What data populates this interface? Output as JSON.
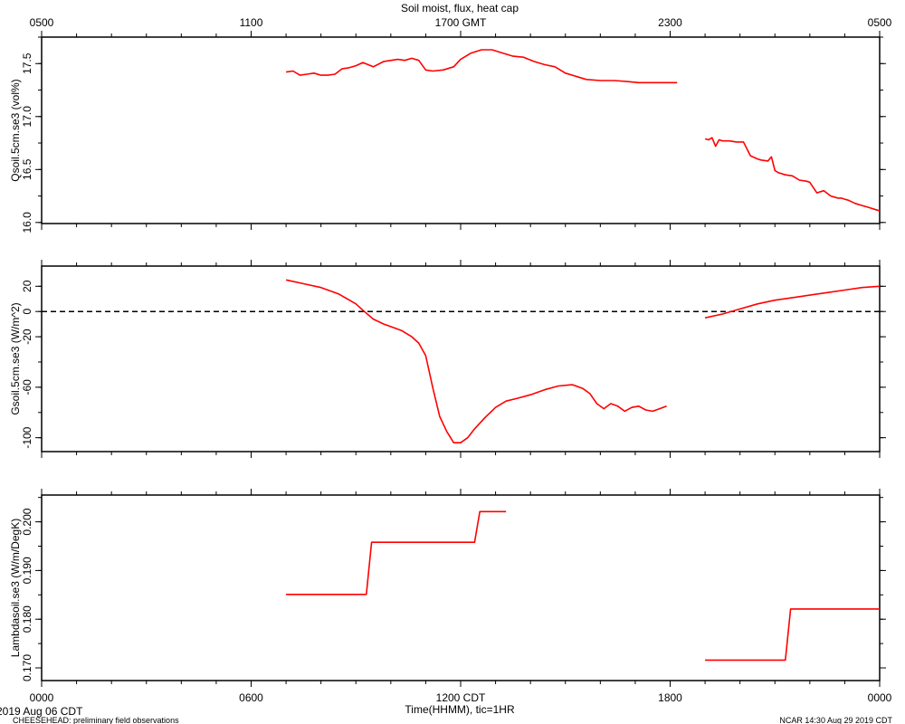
{
  "title": "Soil moist, flux, heat cap",
  "top_axis_ticks": [
    "0500",
    "1100",
    "1700 GMT",
    "2300",
    "0500"
  ],
  "bottom_axis_ticks": [
    "0000",
    "0600",
    "1200 CDT",
    "1800",
    "0000"
  ],
  "date_label": "2019 Aug 06 CDT",
  "xlabel": "Time(HHMM), tic=1HR",
  "footer_left": "CHEESEHEAD: preliminary field observations",
  "footer_right": "NCAR 14:30 Aug 29 2019 CDT",
  "colors": {
    "series": "#ff0000",
    "axes": "#000000",
    "zero_line": "#000000"
  },
  "chart_data": [
    {
      "type": "line",
      "ylabel": "Qsoil.5cm.se3 (vol%)",
      "ylim": [
        15.99,
        17.75
      ],
      "yticks": [
        16.0,
        16.5,
        17.0,
        17.5
      ],
      "yticklabels": [
        "16.0",
        "16.5",
        "17.0",
        "17.5"
      ],
      "xlim": [
        0,
        24
      ],
      "segments": [
        {
          "x": [
            7.0,
            7.2,
            7.4,
            7.6,
            7.8,
            8.0,
            8.2,
            8.4,
            8.6,
            8.8,
            9.0,
            9.2,
            9.5,
            9.8,
            10.2,
            10.4,
            10.6,
            10.8,
            11.0,
            11.2,
            11.5,
            11.8,
            12.0,
            12.3,
            12.6,
            12.9,
            13.2,
            13.5,
            13.8,
            14.1,
            14.4,
            14.7,
            15.0,
            15.3,
            15.6,
            16.0,
            16.4,
            16.8,
            17.1,
            17.4,
            17.6,
            17.8,
            18.0,
            18.2
          ],
          "y": [
            17.42,
            17.43,
            17.39,
            17.4,
            17.41,
            17.39,
            17.39,
            17.4,
            17.45,
            17.46,
            17.48,
            17.51,
            17.47,
            17.52,
            17.54,
            17.53,
            17.55,
            17.53,
            17.44,
            17.43,
            17.44,
            17.47,
            17.54,
            17.6,
            17.63,
            17.63,
            17.6,
            17.57,
            17.56,
            17.52,
            17.49,
            17.47,
            17.41,
            17.38,
            17.35,
            17.34,
            17.34,
            17.33,
            17.32,
            17.32,
            17.32,
            17.32,
            17.32,
            17.32
          ]
        },
        {
          "x": [
            19.0,
            19.1,
            19.2,
            19.3,
            19.4,
            19.5,
            19.7,
            19.9,
            20.1,
            20.3,
            20.5,
            20.6,
            20.8,
            20.9,
            21.0,
            21.1,
            21.2,
            21.3,
            21.5,
            21.7,
            21.9,
            22.0,
            22.2,
            22.4,
            22.6,
            22.7,
            22.8,
            22.9,
            23.0,
            23.1,
            23.3,
            23.5,
            23.7,
            23.9,
            24.0
          ],
          "y": [
            16.79,
            16.78,
            16.8,
            16.72,
            16.78,
            16.77,
            16.77,
            16.76,
            16.76,
            16.63,
            16.6,
            16.59,
            16.58,
            16.62,
            16.49,
            16.47,
            16.46,
            16.45,
            16.44,
            16.4,
            16.39,
            16.38,
            16.28,
            16.3,
            16.25,
            16.24,
            16.23,
            16.23,
            16.22,
            16.21,
            16.18,
            16.16,
            16.14,
            16.12,
            16.11
          ]
        }
      ]
    },
    {
      "type": "line",
      "ylabel": "Gsoil.5cm.se3 (W/m^2)",
      "ylim": [
        -111,
        36
      ],
      "yticks": [
        20,
        0,
        -20,
        -60,
        -100
      ],
      "yticklabels": [
        "20",
        "0",
        "-20",
        "-60",
        "-100"
      ],
      "reference_line": 0,
      "xlim": [
        0,
        24
      ],
      "segments": [
        {
          "x": [
            7.0,
            7.5,
            8.0,
            8.5,
            9.0,
            9.2,
            9.5,
            9.8,
            10.0,
            10.3,
            10.6,
            10.8,
            11.0,
            11.2,
            11.4,
            11.6,
            11.8,
            12.0,
            12.2,
            12.4,
            12.7,
            13.0,
            13.3,
            13.6,
            14.0,
            14.4,
            14.8,
            15.2,
            15.5,
            15.7,
            15.9,
            16.1,
            16.3,
            16.5,
            16.7,
            16.9,
            17.1,
            17.3,
            17.5,
            17.7,
            17.9
          ],
          "y": [
            25,
            22,
            19,
            14,
            6,
            1,
            -6,
            -10,
            -12,
            -15,
            -20,
            -25,
            -35,
            -60,
            -83,
            -95,
            -104,
            -104,
            -100,
            -93,
            -84,
            -76,
            -71,
            -69,
            -66,
            -62,
            -59,
            -58,
            -61,
            -65,
            -73,
            -77,
            -73,
            -75,
            -79,
            -76,
            -75,
            -78,
            -79,
            -77,
            -75
          ]
        },
        {
          "x": [
            19.0,
            19.5,
            20.0,
            20.5,
            21.0,
            21.5,
            22.0,
            22.5,
            23.0,
            23.5,
            24.0
          ],
          "y": [
            -5,
            -2,
            2,
            6,
            9,
            11,
            13,
            15,
            17,
            19,
            20
          ]
        }
      ]
    },
    {
      "type": "line",
      "ylabel": "Lambdasoil.se3 (W/m/DegK)",
      "ylim": [
        0.1674,
        0.2055
      ],
      "yticks": [
        0.17,
        0.18,
        0.19,
        0.2
      ],
      "yticklabels": [
        "0.170",
        "0.180",
        "0.190",
        "0.200"
      ],
      "xlim": [
        0,
        24
      ],
      "segments": [
        {
          "x": [
            7.0,
            9.3,
            9.45,
            12.4,
            12.55,
            13.3
          ],
          "y": [
            0.1851,
            0.1851,
            0.1958,
            0.1958,
            0.2021,
            0.2021
          ]
        },
        {
          "x": [
            19.0,
            21.3,
            21.45,
            24.0
          ],
          "y": [
            0.1716,
            0.1716,
            0.1821,
            0.1821
          ]
        }
      ]
    }
  ]
}
